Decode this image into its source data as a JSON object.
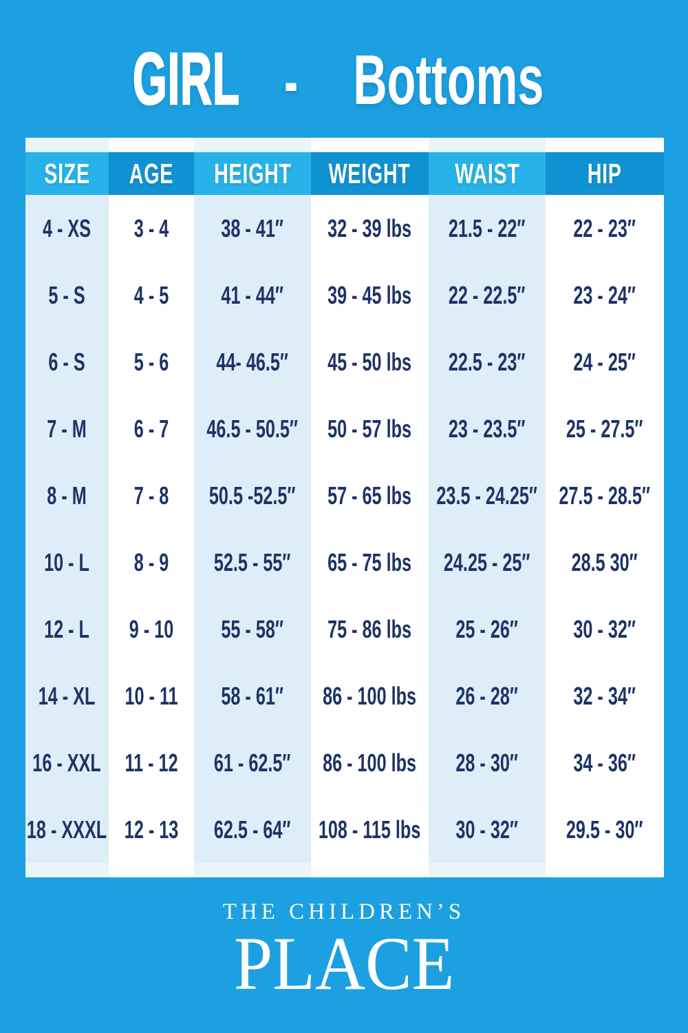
{
  "title": {
    "brand_word": "GIRL",
    "separator": "-",
    "category_word": "Bottoms"
  },
  "table": {
    "headers": [
      "SIZE",
      "AGE",
      "HEIGHT",
      "WEIGHT",
      "WAIST",
      "HIP"
    ],
    "rows": [
      [
        "4 - XS",
        "3 - 4",
        "38 - 41″",
        "32 - 39 lbs",
        "21.5 - 22″",
        "22 - 23″"
      ],
      [
        "5 - S",
        "4 - 5",
        "41 - 44″",
        "39 - 45 lbs",
        "22 - 22.5″",
        "23 - 24″"
      ],
      [
        "6 - S",
        "5 - 6",
        "44- 46.5″",
        "45 - 50 lbs",
        "22.5 - 23″",
        "24 - 25″"
      ],
      [
        "7 - M",
        "6 - 7",
        "46.5 - 50.5″",
        "50 - 57 lbs",
        "23 - 23.5″",
        "25 - 27.5″"
      ],
      [
        "8 - M",
        "7 - 8",
        "50.5 -52.5″",
        "57 - 65 lbs",
        "23.5 - 24.25″",
        "27.5 - 28.5″"
      ],
      [
        "10 - L",
        "8 - 9",
        "52.5 - 55″",
        "65 - 75 lbs",
        "24.25 - 25″",
        "28.5 30″"
      ],
      [
        "12 - L",
        "9 - 10",
        "55 - 58″",
        "75 - 86 lbs",
        "25 - 26″",
        "30 - 32″"
      ],
      [
        "14 - XL",
        "10 - 11",
        "58 - 61″",
        "86 - 100 lbs",
        "26 - 28″",
        "32 - 34″"
      ],
      [
        "16 - XXL",
        "11 - 12",
        "61 - 62.5″",
        "86 - 100 lbs",
        "28 - 30″",
        "34 - 36″"
      ],
      [
        "18 - XXXL",
        "12 - 13",
        "62.5 - 64″",
        "108 - 115 lbs",
        "30 - 32″",
        "29.5 - 30″"
      ]
    ]
  },
  "footer": {
    "line1": "THE CHILDREN’S",
    "line2": "PLACE"
  },
  "colors": {
    "background": "#1CA0E1",
    "header_cell_bright": "#27B3EA",
    "header_cell_dark": "#0F92D2",
    "column_tint": "#DEEEF8",
    "column_white": "#FFFFFF",
    "strip_tint": "#E9F4FB",
    "data_text_navy": "#1E3366",
    "text_white": "#FFFFFF"
  }
}
